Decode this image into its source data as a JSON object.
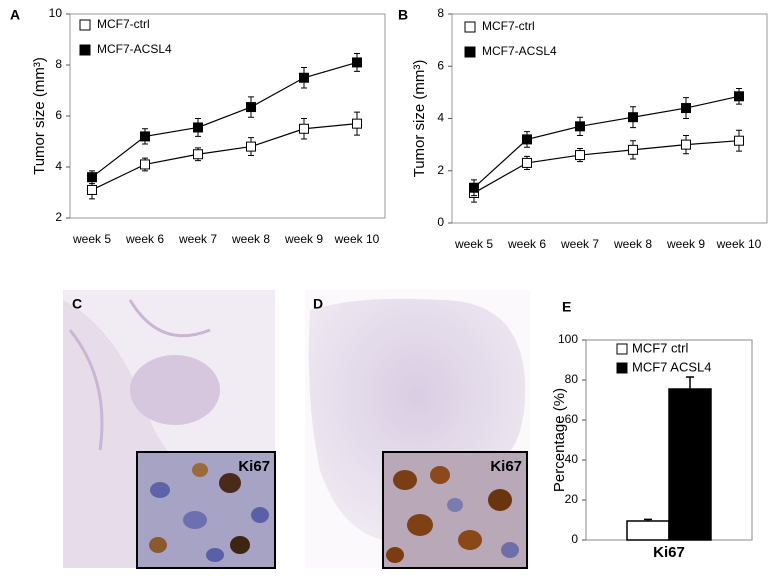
{
  "panel_labels": [
    "A",
    "B",
    "C",
    "D",
    "E"
  ],
  "image_labels": [
    "Ki67",
    "Ki67"
  ],
  "chart_data": [
    {
      "type": "line",
      "ylabel": "Tumor size (mm³)",
      "categories": [
        "week 5",
        "week 6",
        "week 7",
        "week 8",
        "week 9",
        "week 10"
      ],
      "ylim": [
        2,
        10
      ],
      "yticks": [
        2,
        4,
        6,
        8,
        10
      ],
      "series": [
        {
          "name": "MCF7-ctrl",
          "color": "#ffffff",
          "values": [
            3.1,
            4.1,
            4.5,
            4.8,
            5.5,
            5.7
          ],
          "errors": [
            0.35,
            0.25,
            0.25,
            0.35,
            0.4,
            0.45
          ]
        },
        {
          "name": "MCF7-ACSL4",
          "color": "#000000",
          "values": [
            3.6,
            5.2,
            5.55,
            6.35,
            7.5,
            8.1
          ],
          "errors": [
            0.25,
            0.3,
            0.35,
            0.4,
            0.4,
            0.35
          ]
        }
      ]
    },
    {
      "type": "line",
      "ylabel": "Tumor size (mm³)",
      "categories": [
        "week 5",
        "week 6",
        "week 7",
        "week 8",
        "week 9",
        "week 10"
      ],
      "ylim": [
        0,
        8
      ],
      "yticks": [
        0,
        2,
        4,
        6,
        8
      ],
      "series": [
        {
          "name": "MCF7-ctrl",
          "color": "#ffffff",
          "values": [
            1.15,
            2.3,
            2.6,
            2.8,
            3.0,
            3.15
          ],
          "errors": [
            0.35,
            0.25,
            0.25,
            0.35,
            0.35,
            0.4
          ]
        },
        {
          "name": "MCF7-ACSL4",
          "color": "#000000",
          "values": [
            1.35,
            3.2,
            3.7,
            4.05,
            4.4,
            4.85
          ],
          "errors": [
            0.3,
            0.3,
            0.35,
            0.4,
            0.4,
            0.3
          ]
        }
      ]
    },
    {
      "type": "bar",
      "ylabel": "Percentage (%)",
      "categories": [
        "Ki67"
      ],
      "ylim": [
        0,
        100
      ],
      "yticks": [
        0,
        20,
        40,
        60,
        80,
        100
      ],
      "series": [
        {
          "name": "MCF7 ctrl",
          "color": "#ffffff",
          "values": [
            9.5
          ],
          "errors": [
            0.8
          ]
        },
        {
          "name": "MCF7 ACSL4",
          "color": "#000000",
          "values": [
            75.5
          ],
          "errors": [
            6
          ]
        }
      ]
    }
  ]
}
